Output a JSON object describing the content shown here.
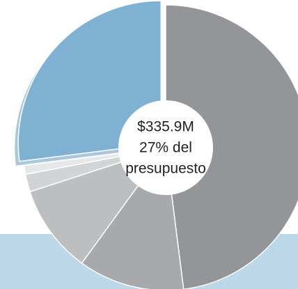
{
  "chart_data": {
    "type": "pie",
    "values": [
      48,
      12,
      10,
      2,
      1,
      27
    ],
    "colors": [
      "#939598",
      "#a7a9ac",
      "#bcbec0",
      "#d1d3d4",
      "#e6e7e8",
      "#7fb1d3"
    ],
    "center_label": [
      "$335.9M",
      "27% del",
      "presupuesto"
    ]
  }
}
